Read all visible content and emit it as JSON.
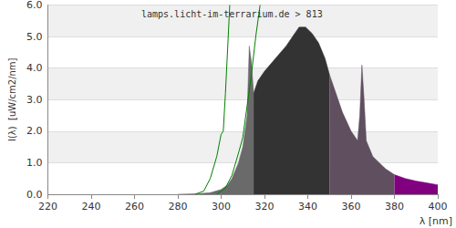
{
  "chart_data": {
    "type": "area",
    "title": "lamps.licht-im-terrarium.de > 813",
    "x_label": "λ [nm]",
    "y_label": "I(λ)  [uW/cm2/nm]",
    "xlim": [
      220,
      400
    ],
    "xticks": [
      220,
      240,
      260,
      280,
      300,
      320,
      340,
      360,
      380,
      400
    ],
    "ylim": [
      0,
      6
    ],
    "yticks": [
      {
        "value": 0,
        "label": "0.0"
      },
      {
        "value": 1,
        "label": "1.0"
      },
      {
        "value": 2,
        "label": "2.0"
      },
      {
        "value": 3,
        "label": "3.0"
      },
      {
        "value": 4,
        "label": "4.0"
      },
      {
        "value": 5,
        "label": "5.0"
      },
      {
        "value": 6,
        "label": "6.0"
      }
    ],
    "grid": true,
    "series": [
      {
        "type": "area",
        "color": "#6a6a6a",
        "x": [
          280,
          285,
          290,
          295,
          300,
          303,
          305,
          308,
          310,
          312,
          313,
          314,
          315
        ],
        "values": [
          0,
          0.01,
          0.02,
          0.05,
          0.15,
          0.3,
          0.5,
          1.0,
          1.5,
          2.5,
          4.7,
          4.2,
          3.2
        ]
      },
      {
        "type": "area",
        "color": "#333333",
        "x": [
          315,
          317,
          320,
          325,
          330,
          333,
          336,
          339,
          342,
          345,
          348,
          350
        ],
        "values": [
          3.2,
          3.6,
          3.9,
          4.3,
          4.7,
          5.0,
          5.3,
          5.3,
          5.1,
          4.8,
          4.3,
          3.8
        ]
      },
      {
        "type": "area",
        "color": "#5f4f5f",
        "x": [
          350,
          353,
          356,
          360,
          363,
          364,
          365,
          366,
          367,
          370,
          373,
          376,
          380
        ],
        "values": [
          3.8,
          3.2,
          2.6,
          2.0,
          1.7,
          2.5,
          4.1,
          3.0,
          1.7,
          1.2,
          1.0,
          0.8,
          0.62
        ]
      },
      {
        "type": "area",
        "color": "#800080",
        "x": [
          380,
          385,
          390,
          395,
          400
        ],
        "values": [
          0.62,
          0.5,
          0.42,
          0.36,
          0.3
        ]
      },
      {
        "type": "line",
        "color": "#008000",
        "x": [
          288,
          292,
          295,
          298,
          300,
          301,
          302,
          303,
          304
        ],
        "values": [
          0,
          0.1,
          0.5,
          1.2,
          1.9,
          2.0,
          3.2,
          4.6,
          6.0
        ]
      },
      {
        "type": "line",
        "color": "#008000",
        "x": [
          298,
          302,
          305,
          308,
          310,
          312,
          314,
          316,
          318
        ],
        "values": [
          0,
          0.2,
          0.6,
          1.3,
          1.8,
          2.8,
          3.8,
          5.0,
          6.0
        ]
      }
    ]
  }
}
